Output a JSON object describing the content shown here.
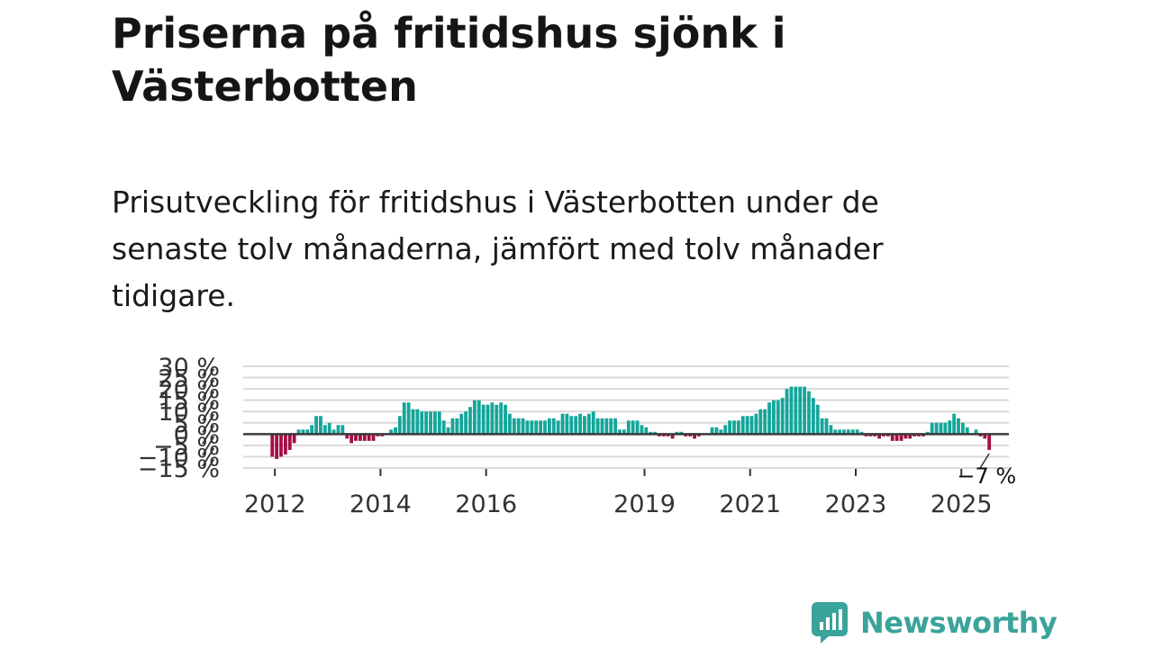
{
  "header": {
    "title": "Priserna på fritidshus sjönk i Västerbotten",
    "subtitle": "Prisutveckling för fritidshus i Västerbotten under de senaste tolv månaderna, jämfört med tolv månader tidigare."
  },
  "brand": {
    "name": "Newsworthy",
    "color": "#3aa39a"
  },
  "colors": {
    "positive": "#14a69a",
    "negative": "#a50d45",
    "grid": "#d9d9d9",
    "zero_line": "#3a3a3a"
  },
  "chart_data": {
    "type": "bar",
    "title": "Prisutveckling för fritidshus i Västerbotten",
    "xlabel": "",
    "ylabel": "",
    "ylim": [
      -15,
      30
    ],
    "y_ticks": [
      "−15 %",
      "−10 %",
      "−5 %",
      "0 %",
      "5 %",
      "10 %",
      "15 %",
      "20 %",
      "25 %",
      "30 %"
    ],
    "y_tick_values": [
      -15,
      -10,
      -5,
      0,
      5,
      10,
      15,
      20,
      25,
      30
    ],
    "x_ticks": [
      "2012",
      "2014",
      "2016",
      "2019",
      "2021",
      "2023",
      "2025"
    ],
    "x_tick_positions": [
      2012,
      2014,
      2016,
      2019,
      2021,
      2023,
      2025
    ],
    "xlim": [
      2011.4,
      2025.9
    ],
    "start": 2011.95,
    "step": 0.0833,
    "values": [
      -10,
      -11,
      -10,
      -9,
      -7,
      -4,
      2,
      2,
      2,
      4,
      8,
      8,
      4,
      5,
      2,
      4,
      4,
      -2,
      -4,
      -3,
      -3,
      -3,
      -3,
      -3,
      -1,
      -1,
      0,
      2,
      3,
      8,
      14,
      14,
      11,
      11,
      10,
      10,
      10,
      10,
      10,
      6,
      3,
      7,
      7,
      9,
      10,
      12,
      15,
      15,
      13,
      13,
      14,
      13,
      14,
      13,
      9,
      7,
      7,
      7,
      6,
      6,
      6,
      6,
      6,
      7,
      7,
      6,
      9,
      9,
      8,
      8,
      9,
      8,
      9,
      10,
      7,
      7,
      7,
      7,
      7,
      2,
      2,
      6,
      6,
      6,
      4,
      3,
      1,
      1,
      -1,
      -1,
      -1,
      -2,
      1,
      1,
      -1,
      -1,
      -2,
      -1,
      0,
      0,
      3,
      3,
      2,
      4,
      6,
      6,
      6,
      8,
      8,
      8,
      9,
      11,
      11,
      14,
      15,
      15,
      16,
      20,
      21,
      21,
      21,
      21,
      19,
      16,
      13,
      7,
      7,
      4,
      2,
      2,
      2,
      2,
      2,
      2,
      1,
      -1,
      -1,
      -1,
      -2,
      -1,
      -1,
      -3,
      -3,
      -3,
      -2,
      -2,
      -1,
      -1,
      -1,
      1,
      5,
      5,
      5,
      5,
      6,
      9,
      7,
      5,
      3,
      0,
      2,
      -1,
      -2,
      -7
    ],
    "last_label": "−7 %"
  }
}
